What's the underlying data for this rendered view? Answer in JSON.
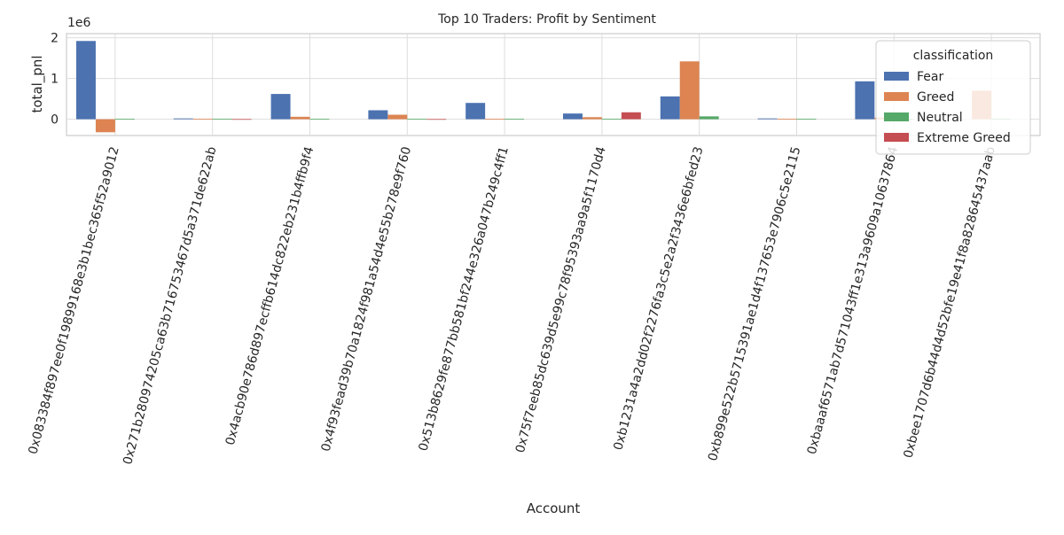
{
  "chart_data": {
    "type": "bar",
    "title": "Top 10 Traders: Profit by Sentiment",
    "xlabel": "Account",
    "ylabel": "total_pnl",
    "offset_label": "1e6",
    "y_ticks": [
      0,
      1,
      2
    ],
    "ylim": [
      -0.4,
      2.1
    ],
    "grid": true,
    "legend_title": "classification",
    "legend_position": "top-right",
    "categories": [
      "0x083384f897ee0f19899168e3b1bec365f52a9012",
      "0x271b280974205ca63b716753467d5a371de622ab",
      "0x4acb90e786d897ecffb614dc822eb231b4ffb9f4",
      "0x4f93fead39b70a1824f981a54d4e55b278e9f760",
      "0x513b8629fe877bb581bf244e326a047b249c4ff1",
      "0x75f7eeb85dc639d5e99c78f95393aa9a5f1170d4",
      "0xb1231a4a2dd02f2276fa3c5e2a2f3436e6bfed23",
      "0xb899e522b5715391ae1d4f137653e7906c5e2115",
      "0xbaaaf6571ab7d571043ff1e313a9609a10637864",
      "0xbee1707d6b44d4d52bfe19e41f8a828645437aab"
    ],
    "series": [
      {
        "name": "Fear",
        "color": "#4c72b0",
        "values": [
          1.92,
          0.02,
          0.62,
          0.22,
          0.4,
          0.14,
          0.56,
          0.02,
          0.93,
          null
        ]
      },
      {
        "name": "Greed",
        "color": "#dd8452",
        "values": [
          -0.32,
          0.01,
          0.06,
          0.11,
          0.01,
          0.05,
          1.42,
          0.01,
          0.04,
          0.7
        ]
      },
      {
        "name": "Neutral",
        "color": "#55a868",
        "values": [
          0.01,
          0.01,
          0.01,
          0.01,
          0.01,
          0.01,
          0.07,
          0.01,
          0.01,
          0.01
        ]
      },
      {
        "name": "Extreme Greed",
        "color": "#c44e52",
        "values": [
          null,
          0.005,
          null,
          0.005,
          null,
          0.17,
          null,
          null,
          null,
          null
        ]
      }
    ],
    "units_note": "values in millions (1e6)"
  }
}
